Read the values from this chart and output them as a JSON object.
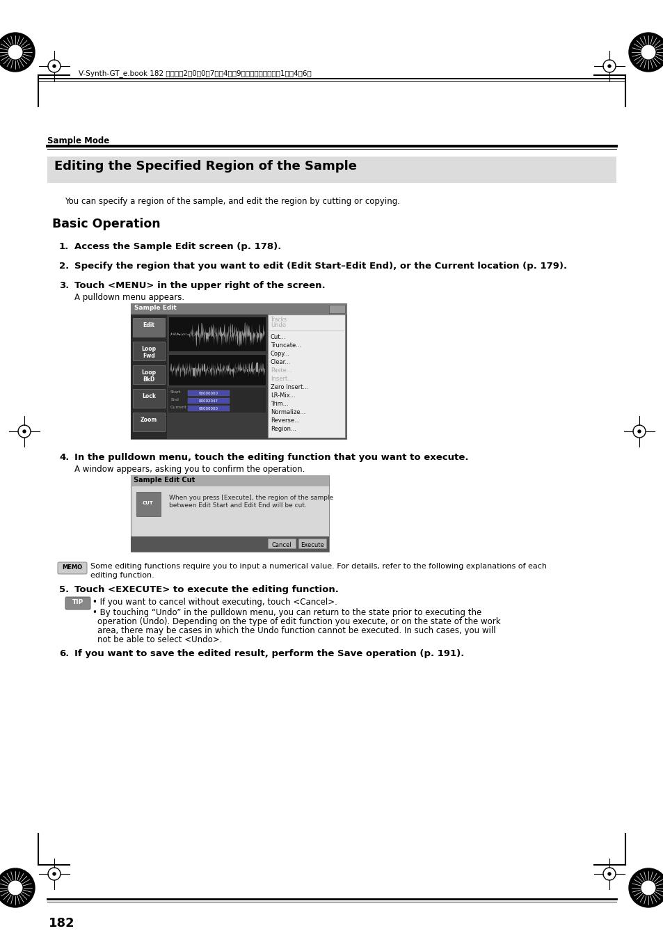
{
  "page_num": "182",
  "header_text": "V-Synth-GT_e.book 182 ページ　2　0　0　7年　4月　9日　月曜日　午後　1時　4　6分",
  "section_label": "Sample Mode",
  "title": "Editing the Specified Region of the Sample",
  "intro_text": "You can specify a region of the sample, and edit the region by cutting or copying.",
  "subsection": "Basic Operation",
  "memo_text_line1": "Some editing functions require you to input a numerical value. For details, refer to the following explanations of each",
  "memo_text_line2": "editing function.",
  "tip_bullet1": "If you want to cancel without executing, touch <Cancel>.",
  "tip_bullet2a": "By touching “Undo” in the pulldown menu, you can return to the state prior to executing the",
  "tip_bullet2b": "operation (Undo). Depending on the type of edit function you execute, or on the state of the work",
  "tip_bullet2c": "area, there may be cases in which the Undo function cannot be executed. In such cases, you will",
  "tip_bullet2d": "not be able to select <Undo>.",
  "bg_color": "#ffffff"
}
